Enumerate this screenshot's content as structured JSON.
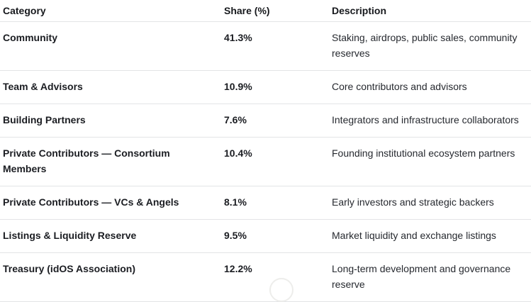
{
  "colors": {
    "background": "#ffffff",
    "row_divider": "#e3e4e6",
    "text_primary": "#1b1d22",
    "text_description": "#26292f",
    "circle_border": "#ededeb"
  },
  "table": {
    "columns": [
      {
        "label": "Category"
      },
      {
        "label": "Share (%)"
      },
      {
        "label": "Description"
      }
    ],
    "rows": [
      {
        "category": "Community",
        "share": "41.3%",
        "description": "Staking, airdrops, public sales, community\nreserves"
      },
      {
        "category": "Team & Advisors",
        "share": "10.9%",
        "description": "Core contributors and advisors"
      },
      {
        "category": "Building Partners",
        "share": "7.6%",
        "description": "Integrators and infrastructure collaborators"
      },
      {
        "category": "Private Contributors — Consortium\nMembers",
        "share": "10.4%",
        "description": "Founding institutional ecosystem partners"
      },
      {
        "category": "Private Contributors — VCs & Angels",
        "share": "8.1%",
        "description": "Early investors and strategic backers"
      },
      {
        "category": "Listings & Liquidity Reserve",
        "share": "9.5%",
        "description": "Market liquidity and exchange listings"
      },
      {
        "category": "Treasury (idOS Association)",
        "share": "12.2%",
        "description": "Long-term development and governance\nreserve"
      }
    ]
  }
}
